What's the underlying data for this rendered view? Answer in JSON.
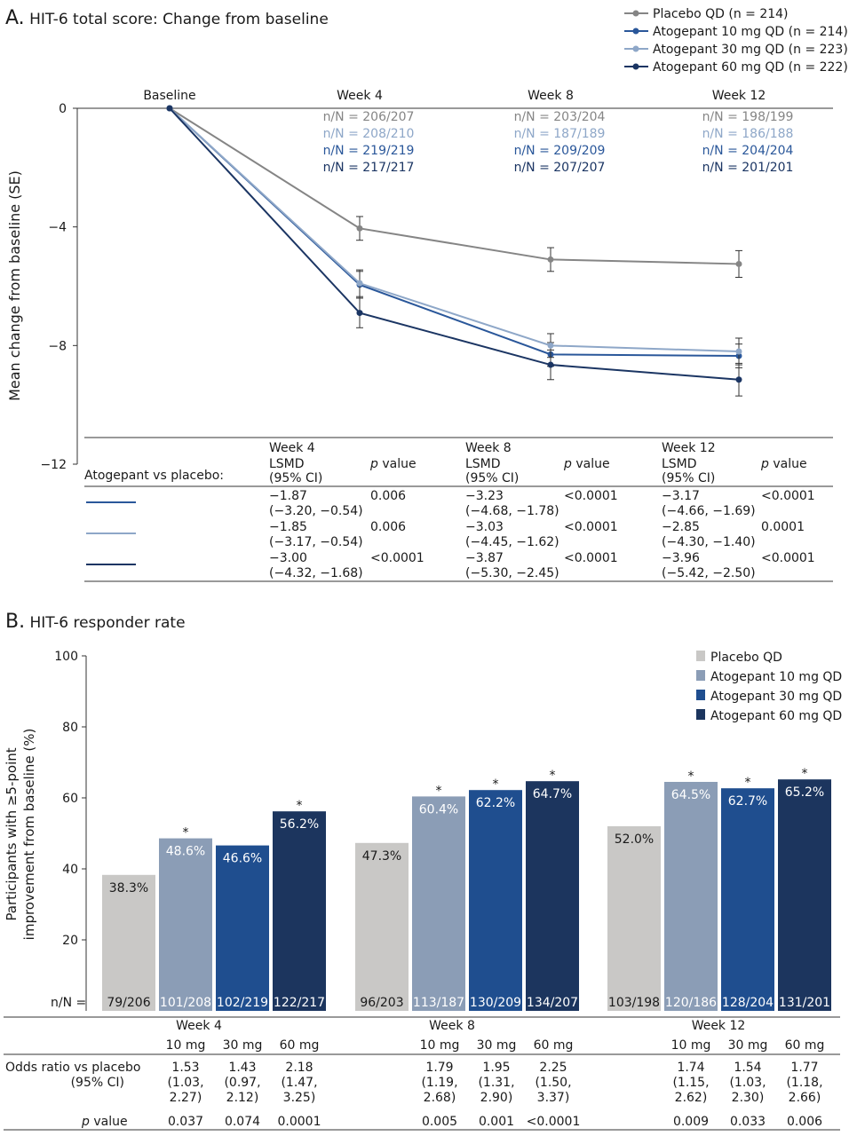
{
  "panel_a": {
    "letter": "A.",
    "title": "HIT-6 total score: Change from baseline",
    "legend": [
      "Placebo QD (n = 214)",
      "Atogepant 10 mg QD (n = 214)",
      "Atogepant 30 mg QD (n = 223)",
      "Atogepant 60 mg QD (n = 222)"
    ],
    "nN_rows": [
      [
        "n/N = 206/207",
        "n/N = 203/204",
        "n/N = 198/199"
      ],
      [
        "n/N = 208/210",
        "n/N = 187/189",
        "n/N = 186/188"
      ],
      [
        "n/N = 219/219",
        "n/N = 209/209",
        "n/N = 204/204"
      ],
      [
        "n/N = 217/217",
        "n/N = 207/207",
        "n/N = 201/201"
      ]
    ],
    "table": {
      "row_label": "Atogepant vs placebo:",
      "weeks": [
        "Week 4",
        "Week 8",
        "Week 12"
      ],
      "lsmd_line1": "LSMD",
      "lsmd_line2": "(95% CI)",
      "p_italic": "p",
      "p_rest": " value",
      "rows": [
        [
          [
            "−1.87",
            "(−3.20, −0.54)",
            "0.006"
          ],
          [
            "−3.23",
            "(−4.68, −1.78)",
            "<0.0001"
          ],
          [
            "−3.17",
            "(−4.66, −1.69)",
            "<0.0001"
          ]
        ],
        [
          [
            "−1.85",
            "(−3.17, −0.54)",
            "0.006"
          ],
          [
            "−3.03",
            "(−4.45, −1.62)",
            "<0.0001"
          ],
          [
            "−2.85",
            "(−4.30, −1.40)",
            "0.0001"
          ]
        ],
        [
          [
            "−3.00",
            "(−4.32, −1.68)",
            "<0.0001"
          ],
          [
            "−3.87",
            "(−5.30, −2.45)",
            "<0.0001"
          ],
          [
            "−3.96",
            "(−5.42, −2.50)",
            "<0.0001"
          ]
        ]
      ]
    }
  },
  "panel_b": {
    "letter": "B.",
    "title": "HIT-6 responder rate",
    "legend": [
      "Placebo QD",
      "Atogepant 10 mg QD",
      "Atogepant 30 mg QD",
      "Atogepant 60 mg QD"
    ],
    "nN_label": "n/N =",
    "table": {
      "weeks": [
        "Week 4",
        "Week 8",
        "Week 12"
      ],
      "doses": [
        "10 mg",
        "30 mg",
        "60 mg"
      ],
      "or_label_1": "Odds ratio vs placebo",
      "or_label_2": "(95% CI)",
      "p_italic": "p",
      "p_rest": " value",
      "or": [
        [
          [
            "1.53",
            "(1.03,",
            "2.27)"
          ],
          [
            "1.43",
            "(0.97,",
            "2.12)"
          ],
          [
            "2.18",
            "(1.47,",
            "3.25)"
          ]
        ],
        [
          [
            "1.79",
            "(1.19,",
            "2.68)"
          ],
          [
            "1.95",
            "(1.31,",
            "2.90)"
          ],
          [
            "2.25",
            "(1.50,",
            "3.37)"
          ]
        ],
        [
          [
            "1.74",
            "(1.15,",
            "2.62)"
          ],
          [
            "1.54",
            "(1.03,",
            "2.30)"
          ],
          [
            "1.77",
            "(1.18,",
            "2.66)"
          ]
        ]
      ],
      "p": [
        [
          "0.037",
          "0.074",
          "0.0001"
        ],
        [
          "0.005",
          "0.001",
          "<0.0001"
        ],
        [
          "0.009",
          "0.033",
          "0.006"
        ]
      ]
    }
  },
  "chart_data": [
    {
      "type": "line",
      "title": "HIT-6 total score: Change from baseline",
      "xlabel": "",
      "ylabel": "Mean change from baseline (SE)",
      "x": [
        "Baseline",
        "Week 4",
        "Week 8",
        "Week 12"
      ],
      "ylim": [
        -12,
        0
      ],
      "yticks": [
        "0",
        "−4",
        "−8",
        "−12"
      ],
      "grid": false,
      "legend_position": "top-right",
      "error_bars": "SE",
      "series": [
        {
          "name": "Placebo QD (n = 214)",
          "color": "#858585",
          "values": [
            0,
            -4.05,
            -5.1,
            -5.25
          ],
          "se": [
            0,
            0.4,
            0.4,
            0.45
          ]
        },
        {
          "name": "Atogepant 10 mg QD (n = 214)",
          "color": "#2a579a",
          "values": [
            0,
            -5.95,
            -8.3,
            -8.35
          ],
          "se": [
            0,
            0.45,
            0.4,
            0.4
          ]
        },
        {
          "name": "Atogepant 30 mg QD (n = 223)",
          "color": "#8ea7c8",
          "values": [
            0,
            -5.9,
            -8.0,
            -8.2
          ],
          "se": [
            0,
            0.45,
            0.4,
            0.45
          ]
        },
        {
          "name": "Atogepant 60 mg QD (n = 222)",
          "color": "#1b3563",
          "values": [
            0,
            -6.9,
            -8.65,
            -9.15
          ],
          "se": [
            0,
            0.5,
            0.5,
            0.55
          ]
        }
      ]
    },
    {
      "type": "bar",
      "title": "HIT-6 responder rate",
      "xlabel": "",
      "ylabel": "Participants with ≥5-point improvement from baseline (%)",
      "categories": [
        "Week 4",
        "Week 8",
        "Week 12"
      ],
      "ylim": [
        0,
        100
      ],
      "yticks": [
        "20",
        "40",
        "60",
        "80",
        "100"
      ],
      "grid": false,
      "legend_position": "top-right",
      "series": [
        {
          "name": "Placebo QD",
          "color": "#c9c8c6",
          "text_color": "#1a1a1a",
          "values": [
            38.3,
            47.3,
            52.0
          ],
          "labels": [
            "38.3%",
            "47.3%",
            "52.0%"
          ],
          "nN": [
            "79/206",
            "96/203",
            "103/198"
          ],
          "significant": [
            false,
            false,
            false
          ]
        },
        {
          "name": "Atogepant 10 mg QD",
          "color": "#8b9db6",
          "text_color": "#ffffff",
          "values": [
            48.6,
            60.4,
            64.5
          ],
          "labels": [
            "48.6%",
            "60.4%",
            "64.5%"
          ],
          "nN": [
            "101/208",
            "113/187",
            "120/186"
          ],
          "significant": [
            true,
            true,
            true
          ]
        },
        {
          "name": "Atogepant 30 mg QD",
          "color": "#1f4e8f",
          "text_color": "#ffffff",
          "values": [
            46.6,
            62.2,
            62.7
          ],
          "labels": [
            "46.6%",
            "62.2%",
            "62.7%"
          ],
          "nN": [
            "102/219",
            "130/209",
            "128/204"
          ],
          "significant": [
            false,
            true,
            true
          ]
        },
        {
          "name": "Atogepant 60 mg QD",
          "color": "#1c355e",
          "text_color": "#ffffff",
          "values": [
            56.2,
            64.7,
            65.2
          ],
          "labels": [
            "56.2%",
            "64.7%",
            "65.2%"
          ],
          "nN": [
            "122/217",
            "134/207",
            "131/201"
          ],
          "significant": [
            true,
            true,
            true
          ]
        }
      ],
      "significance_marker": "*"
    }
  ]
}
